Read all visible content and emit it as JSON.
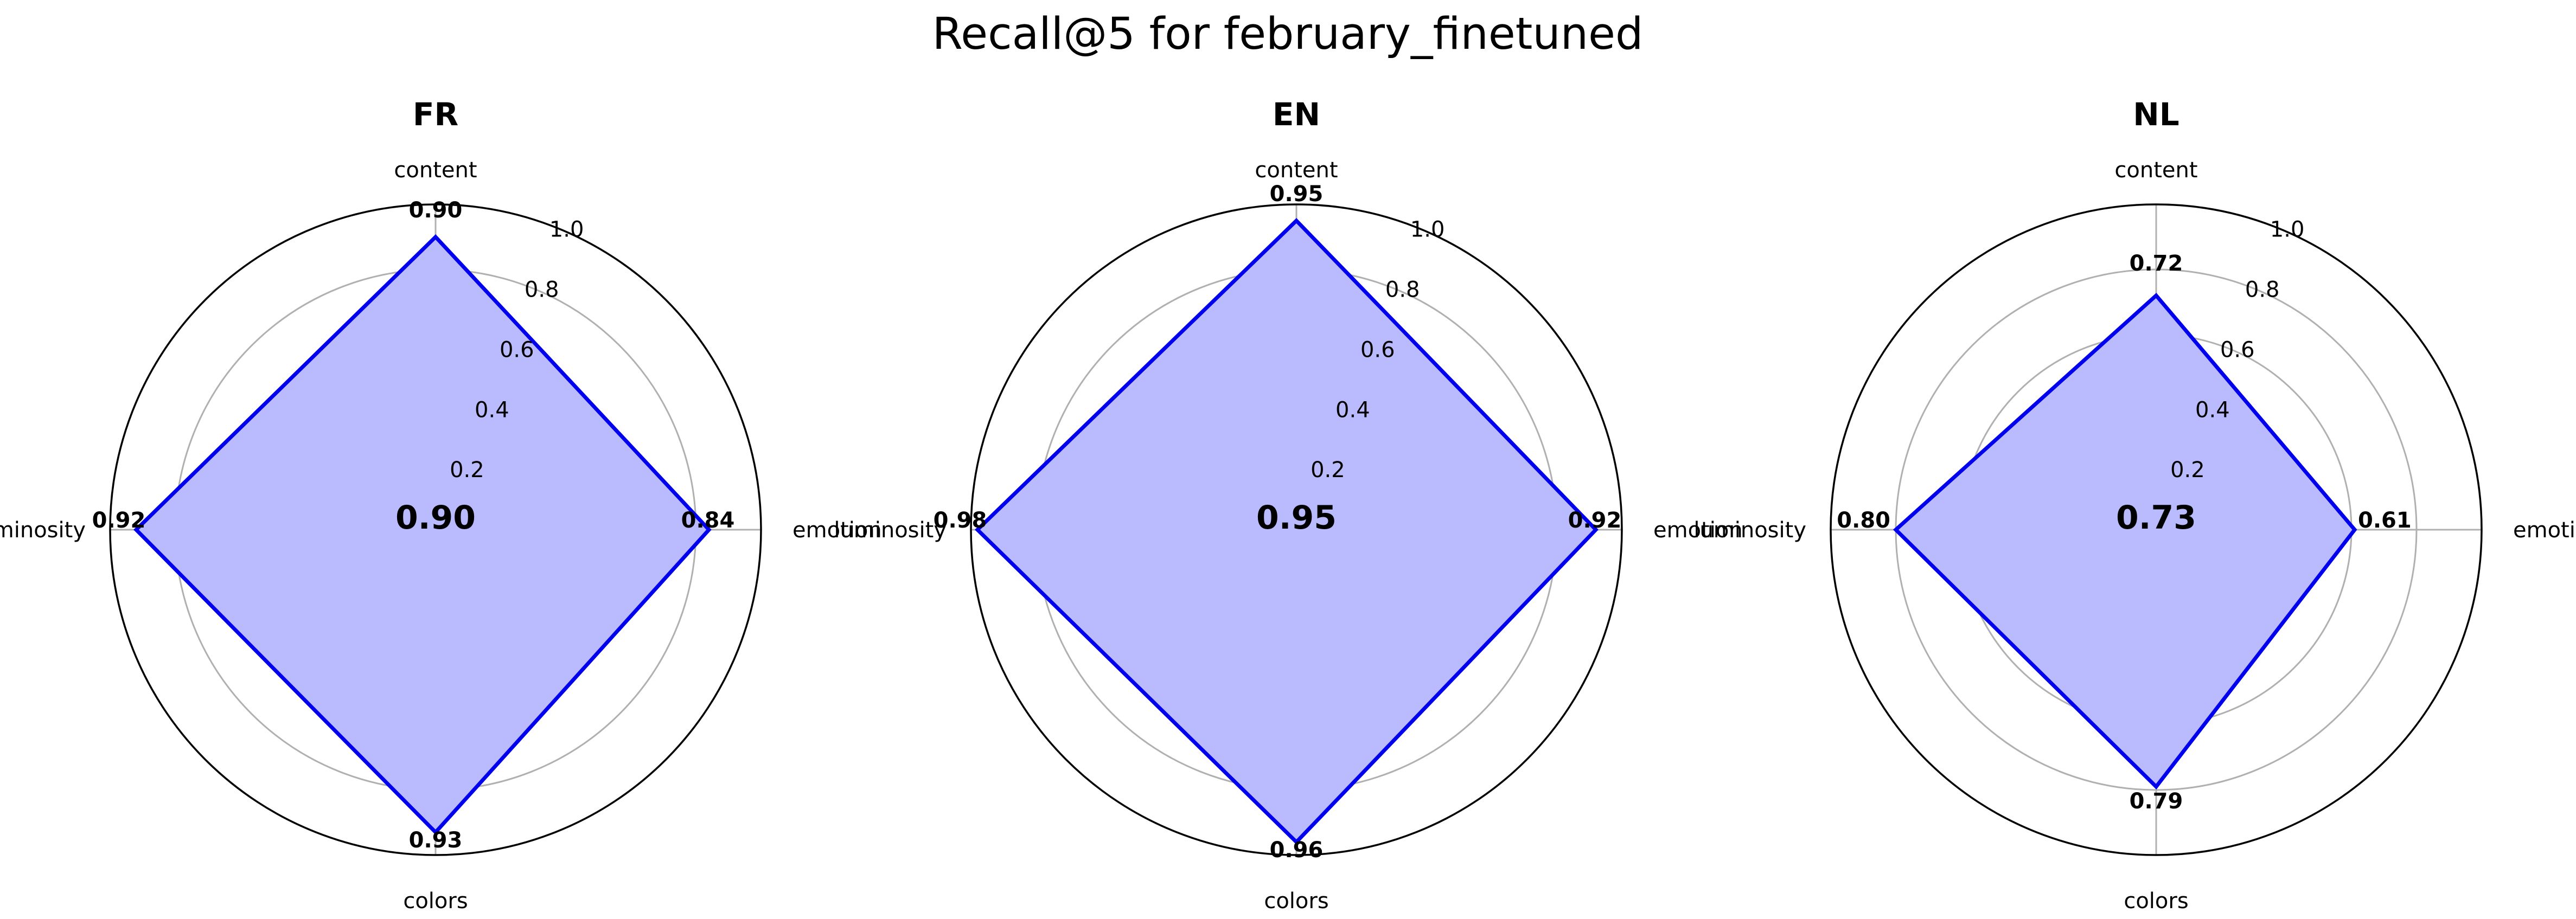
{
  "figure": {
    "title": "Recall@5 for february_finetuned"
  },
  "chart_data": [
    {
      "type": "radar",
      "title": "FR",
      "axes": [
        "content",
        "emotion",
        "colors",
        "luminosity"
      ],
      "values": [
        0.9,
        0.84,
        0.93,
        0.92
      ],
      "value_labels": [
        "0.90",
        "0.84",
        "0.93",
        "0.92"
      ],
      "center_label": "0.90",
      "rlim": [
        0,
        1.0
      ],
      "r_ticks": [
        0.2,
        0.4,
        0.6,
        0.8,
        1.0
      ],
      "r_tick_labels": [
        "0.2",
        "0.4",
        "0.6",
        "0.8",
        "1.0"
      ],
      "grid": true,
      "line_color": "#0000ee",
      "fill_color": "#babafe"
    },
    {
      "type": "radar",
      "title": "EN",
      "axes": [
        "content",
        "emotion",
        "colors",
        "luminosity"
      ],
      "values": [
        0.95,
        0.92,
        0.96,
        0.98
      ],
      "value_labels": [
        "0.95",
        "0.92",
        "0.96",
        "0.98"
      ],
      "center_label": "0.95",
      "rlim": [
        0,
        1.0
      ],
      "r_ticks": [
        0.2,
        0.4,
        0.6,
        0.8,
        1.0
      ],
      "r_tick_labels": [
        "0.2",
        "0.4",
        "0.6",
        "0.8",
        "1.0"
      ],
      "grid": true,
      "line_color": "#0000ee",
      "fill_color": "#babafe"
    },
    {
      "type": "radar",
      "title": "NL",
      "axes": [
        "content",
        "emotion",
        "colors",
        "luminosity"
      ],
      "values": [
        0.72,
        0.61,
        0.79,
        0.8
      ],
      "value_labels": [
        "0.72",
        "0.61",
        "0.79",
        "0.80"
      ],
      "center_label": "0.73",
      "rlim": [
        0,
        1.0
      ],
      "r_ticks": [
        0.2,
        0.4,
        0.6,
        0.8,
        1.0
      ],
      "r_tick_labels": [
        "0.2",
        "0.4",
        "0.6",
        "0.8",
        "1.0"
      ],
      "grid": true,
      "line_color": "#0000ee",
      "fill_color": "#babafe"
    }
  ]
}
